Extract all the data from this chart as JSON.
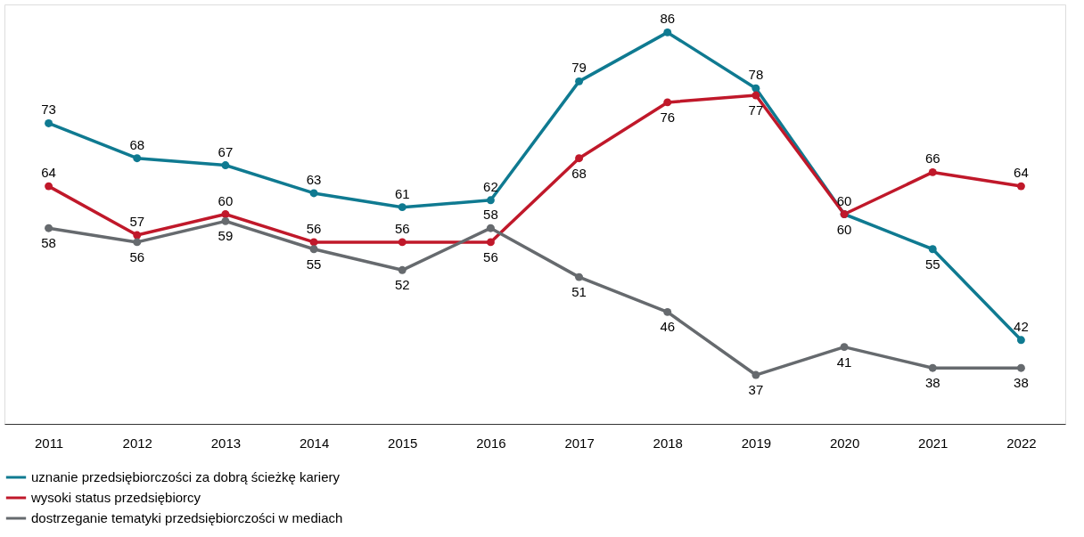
{
  "chart_data": {
    "type": "line",
    "categories": [
      "2011",
      "2012",
      "2013",
      "2014",
      "2015",
      "2016",
      "2017",
      "2018",
      "2019",
      "2020",
      "2021",
      "2022"
    ],
    "series": [
      {
        "name": "uznanie przedsiębiorczości za dobrą ścieżkę kariery",
        "color": "#0f7a91",
        "values": [
          73,
          68,
          67,
          63,
          61,
          62,
          79,
          86,
          78,
          60,
          55,
          42
        ]
      },
      {
        "name": "wysoki status przedsiębiorcy",
        "color": "#c0182a",
        "values": [
          64,
          57,
          60,
          56,
          56,
          56,
          68,
          76,
          77,
          60,
          66,
          64
        ]
      },
      {
        "name": "dostrzeganie tematyki przedsiębiorczości w mediach",
        "color": "#666a6e",
        "values": [
          58,
          56,
          59,
          55,
          52,
          58,
          51,
          46,
          37,
          41,
          38,
          38
        ]
      }
    ],
    "ylim": [
      30,
      90
    ],
    "tick_labels": "x",
    "data_labels": true,
    "legend": "bottom",
    "grid": false,
    "marker": "circle",
    "line_style": "solid"
  }
}
